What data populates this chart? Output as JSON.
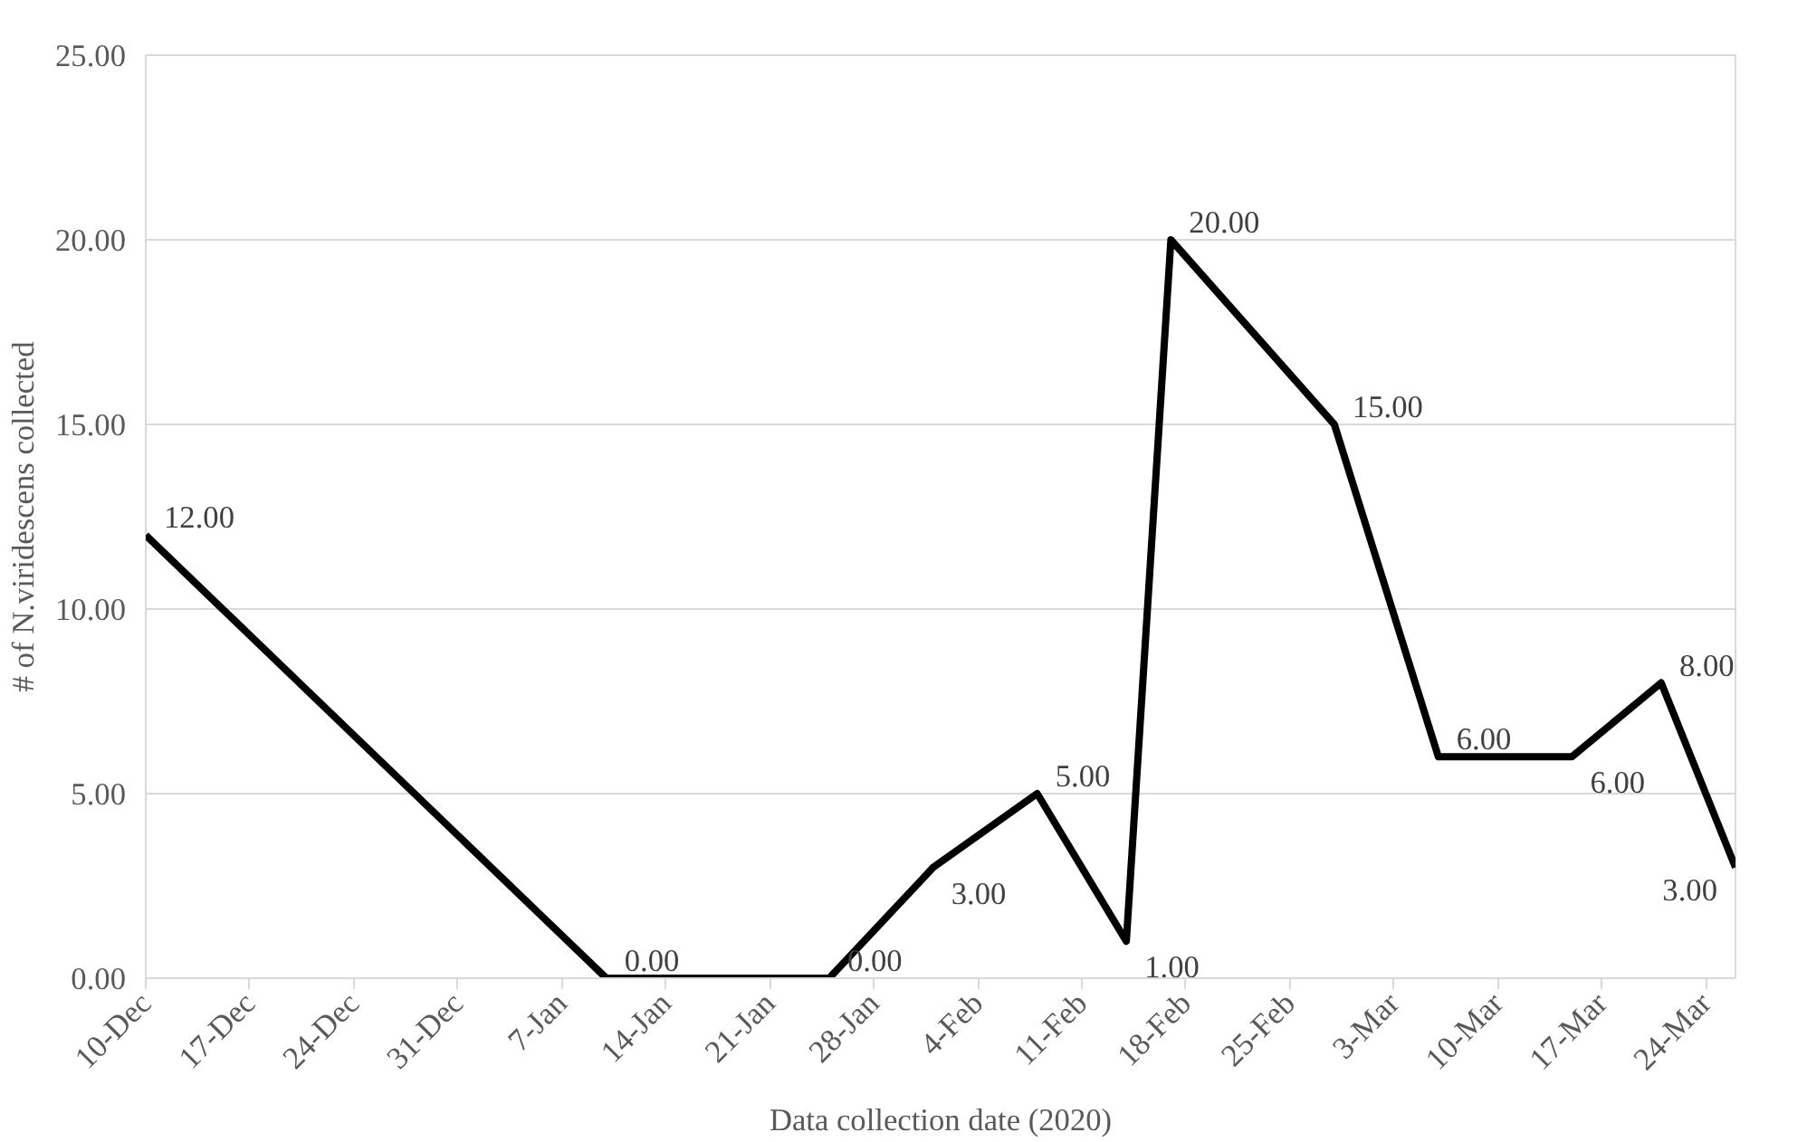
{
  "chart_data": {
    "type": "line",
    "xlabel": "Data collection date (2020)",
    "ylabel": "# of N.viridescens collected",
    "x": [
      "2019-12-10",
      "2020-01-10",
      "2020-01-25",
      "2020-02-01",
      "2020-02-08",
      "2020-02-14",
      "2020-02-17",
      "2020-02-28",
      "2020-03-06",
      "2020-03-15",
      "2020-03-21",
      "2020-03-26"
    ],
    "series": [
      {
        "color": "#000000",
        "values": [
          12,
          0,
          0,
          3,
          5,
          1,
          20,
          15,
          6,
          6,
          8,
          3
        ],
        "value_labels": [
          "12.00",
          "0.00",
          "0.00",
          "3.00",
          "5.00",
          "1.00",
          "20.00",
          "15.00",
          "6.00",
          "6.00",
          "8.00",
          "3.00"
        ]
      }
    ],
    "xlim": [
      "2019-12-10",
      "2020-03-26"
    ],
    "xticks": [
      {
        "value": "2019-12-10",
        "label": "10-Dec"
      },
      {
        "value": "2019-12-17",
        "label": "17-Dec"
      },
      {
        "value": "2019-12-24",
        "label": "24-Dec"
      },
      {
        "value": "2019-12-31",
        "label": "31-Dec"
      },
      {
        "value": "2020-01-07",
        "label": "7-Jan"
      },
      {
        "value": "2020-01-14",
        "label": "14-Jan"
      },
      {
        "value": "2020-01-21",
        "label": "21-Jan"
      },
      {
        "value": "2020-01-28",
        "label": "28-Jan"
      },
      {
        "value": "2020-02-04",
        "label": "4-Feb"
      },
      {
        "value": "2020-02-11",
        "label": "11-Feb"
      },
      {
        "value": "2020-02-18",
        "label": "18-Feb"
      },
      {
        "value": "2020-02-25",
        "label": "25-Feb"
      },
      {
        "value": "2020-03-03",
        "label": "3-Mar"
      },
      {
        "value": "2020-03-10",
        "label": "10-Mar"
      },
      {
        "value": "2020-03-17",
        "label": "17-Mar"
      },
      {
        "value": "2020-03-24",
        "label": "24-Mar"
      }
    ],
    "ylim": [
      0,
      25
    ],
    "yticks": [
      {
        "value": 0,
        "label": "0.00"
      },
      {
        "value": 5,
        "label": "5.00"
      },
      {
        "value": 10,
        "label": "10.00"
      },
      {
        "value": 15,
        "label": "15.00"
      },
      {
        "value": 20,
        "label": "20.00"
      },
      {
        "value": 25,
        "label": "25.00"
      }
    ],
    "grid": "y",
    "marker": "none",
    "line_style": "solid"
  }
}
